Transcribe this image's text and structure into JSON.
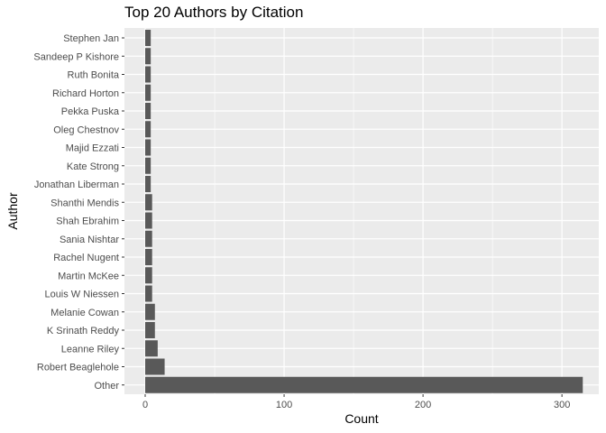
{
  "chart_data": {
    "type": "bar",
    "orientation": "horizontal",
    "title": "Top 20 Authors by Citation",
    "xlabel": "Count",
    "ylabel": "Author",
    "xlim": [
      0,
      330
    ],
    "xticks": [
      0,
      100,
      200,
      300
    ],
    "grid": true,
    "legend": "none",
    "categories": [
      "Stephen Jan",
      "Sandeep P Kishore",
      "Ruth Bonita",
      "Richard Horton",
      "Pekka Puska",
      "Oleg Chestnov",
      "Majid Ezzati",
      "Kate Strong",
      "Jonathan Liberman",
      "Shanthi Mendis",
      "Shah Ebrahim",
      "Sania Nishtar",
      "Rachel Nugent",
      "Martin McKee",
      "Louis W Niessen",
      "Melanie Cowan",
      "K Srinath Reddy",
      "Leanne Riley",
      "Robert Beaglehole",
      "Other"
    ],
    "values": [
      4,
      4,
      4,
      4,
      4,
      4,
      4,
      4,
      4,
      5,
      5,
      5,
      5,
      5,
      5,
      7,
      7,
      9,
      14,
      315
    ],
    "colors": {
      "panel": "#ebebeb",
      "grid": "#ffffff",
      "bar": "#595959",
      "tick_text": "#4d4d4d",
      "tick_mark": "#333333"
    }
  }
}
